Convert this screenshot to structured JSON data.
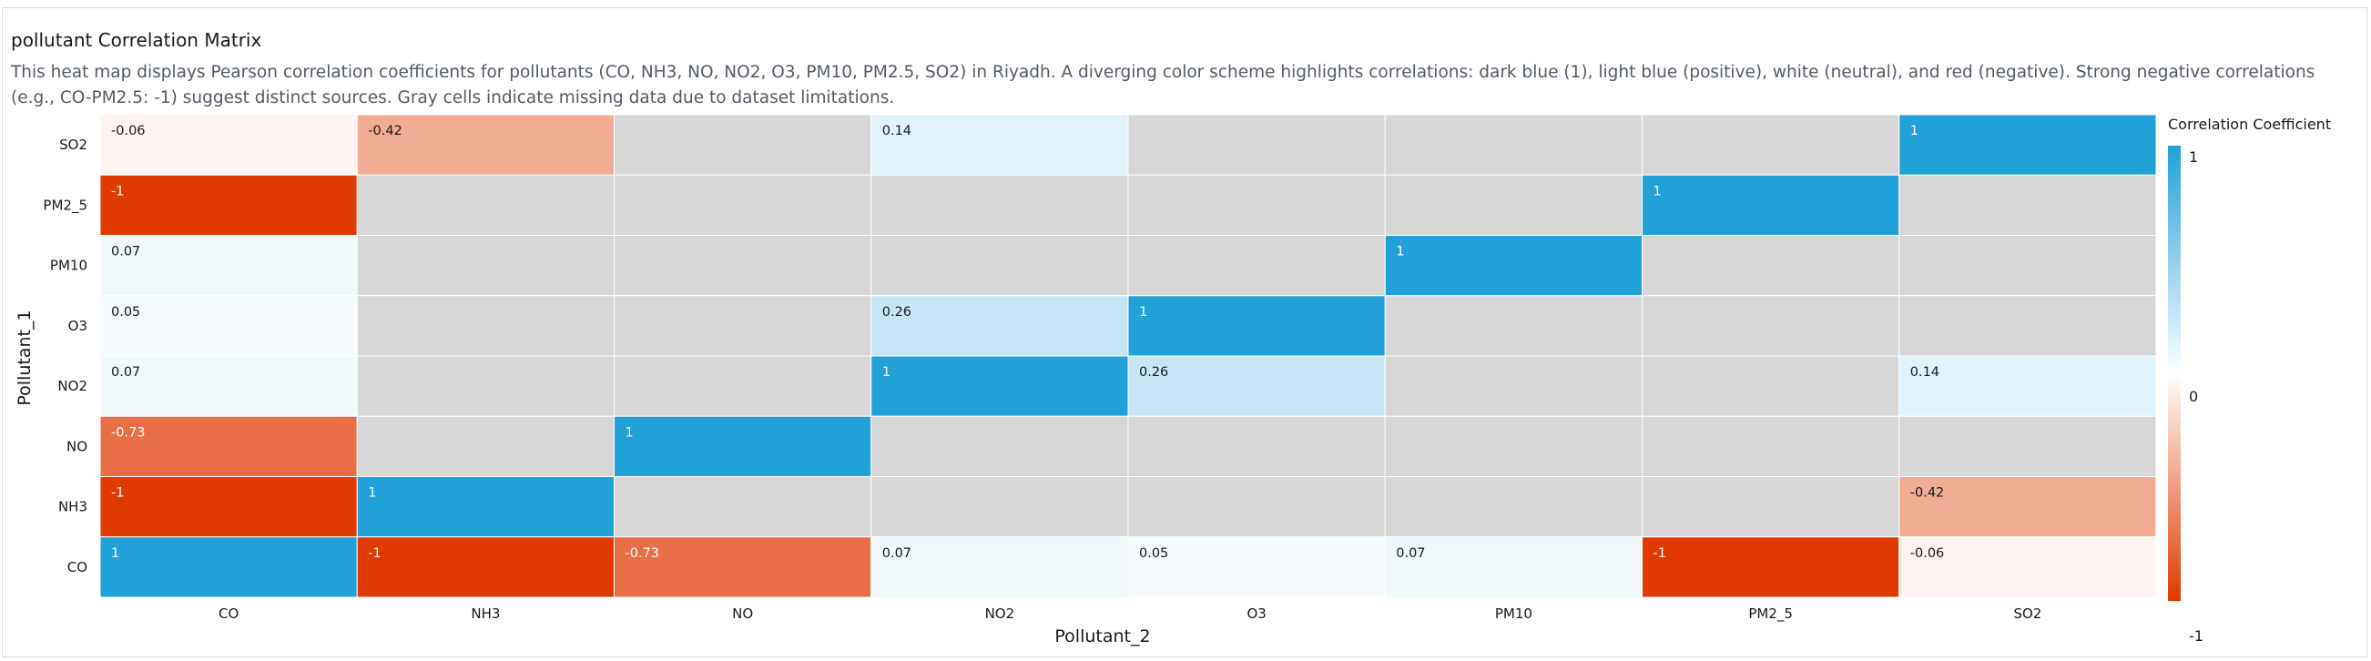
{
  "chart_data": {
    "type": "heatmap",
    "title": "pollutant Correlation Matrix",
    "subtitle": "This heat map displays Pearson correlation coefficients for pollutants (CO, NH3, NO, NO2, O3, PM10, PM2.5, SO2) in Riyadh. A diverging color scheme highlights correlations: dark blue (1), light blue (positive), white (neutral), and red (negative). Strong negative correlations (e.g., CO-PM2.5: -1) suggest distinct sources. Gray cells indicate missing data due to dataset limitations.",
    "xlabel": "Pollutant_2",
    "ylabel": "Pollutant_1",
    "x_categories": [
      "CO",
      "NH3",
      "NO",
      "NO2",
      "O3",
      "PM10",
      "PM2_5",
      "SO2"
    ],
    "y_categories": [
      "SO2",
      "PM2_5",
      "PM10",
      "O3",
      "NO2",
      "NO",
      "NH3",
      "CO"
    ],
    "values": [
      [
        -0.06,
        -0.42,
        null,
        0.14,
        null,
        null,
        null,
        1
      ],
      [
        -1,
        null,
        null,
        null,
        null,
        null,
        1,
        null
      ],
      [
        0.07,
        null,
        null,
        null,
        null,
        1,
        null,
        null
      ],
      [
        0.05,
        null,
        null,
        0.26,
        1,
        null,
        null,
        null
      ],
      [
        0.07,
        null,
        null,
        1,
        0.26,
        null,
        null,
        0.14
      ],
      [
        -0.73,
        null,
        1,
        null,
        null,
        null,
        null,
        null
      ],
      [
        -1,
        1,
        null,
        null,
        null,
        null,
        null,
        -0.42
      ],
      [
        1,
        -1,
        -0.73,
        0.07,
        0.05,
        0.07,
        -1,
        -0.06
      ]
    ],
    "value_range": [
      -1,
      1
    ],
    "colors": {
      "positive": "#22a0d8",
      "neutral": "#ffffff",
      "negative": "#e03a00",
      "missing": "#d7d7d7"
    },
    "legend": {
      "title": "Correlation Coefficient",
      "ticks": [
        "1",
        "0",
        "-1"
      ],
      "placement": "right"
    }
  }
}
